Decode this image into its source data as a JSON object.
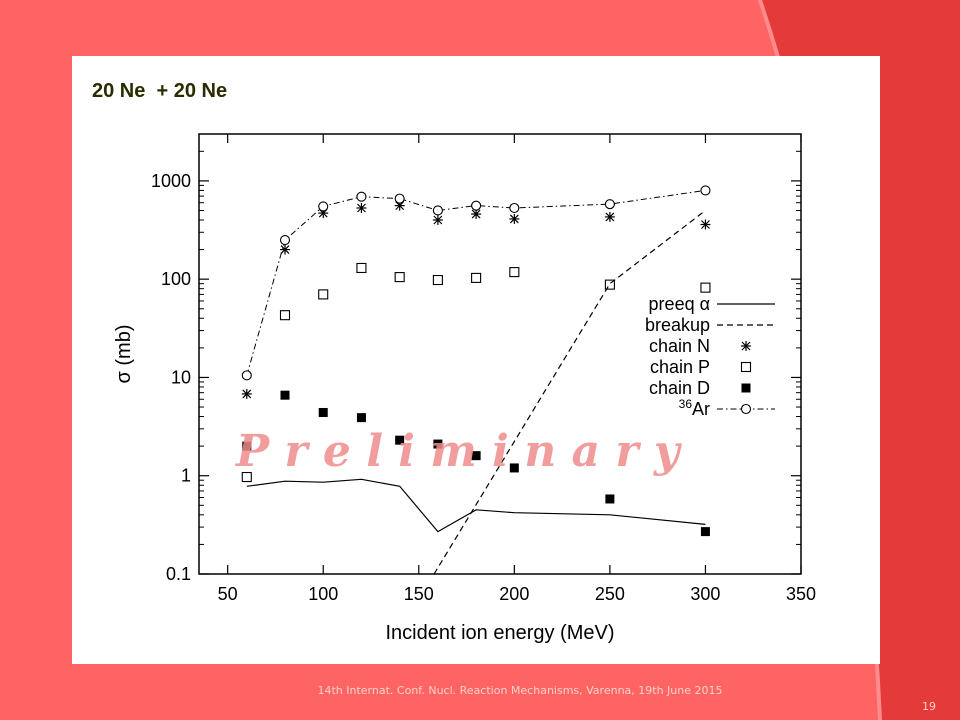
{
  "slide": {
    "title": "20 Ne  + 20 Ne",
    "footer": "14th Internat. Conf. Nucl. Reaction Mechanisms, Varenna, 19th June 2015",
    "page_number": "19",
    "watermark": "P r e l i m i n a r y"
  },
  "colors": {
    "background": "#ff6464",
    "accent_right": "#e53a3a",
    "watermark": "#f08c8c"
  },
  "chart_data": {
    "type": "scatter",
    "xlabel": "Incident ion energy (MeV)",
    "ylabel": "σ (mb)",
    "xlim": [
      35,
      350
    ],
    "ylim": [
      0.1,
      3000
    ],
    "yscale": "log",
    "x_ticks": [
      50,
      100,
      150,
      200,
      250,
      300,
      350
    ],
    "y_ticks": [
      {
        "value": 0.1,
        "label": "0.1"
      },
      {
        "value": 1,
        "label": "1"
      },
      {
        "value": 10,
        "label": "10"
      },
      {
        "value": 100,
        "label": "100"
      },
      {
        "value": 1000,
        "label": "1000"
      }
    ],
    "grid": false,
    "legend_position": "right",
    "series": [
      {
        "name": "preeq α",
        "style": "solid",
        "x": [
          60,
          80,
          100,
          120,
          140,
          160,
          180,
          200,
          250,
          300
        ],
        "y": [
          0.78,
          0.88,
          0.86,
          0.92,
          0.78,
          0.27,
          0.45,
          0.42,
          0.4,
          0.32
        ]
      },
      {
        "name": "breakup",
        "style": "dashed",
        "x": [
          158,
          250,
          300
        ],
        "y": [
          0.1,
          90,
          500
        ]
      },
      {
        "name": "chain N",
        "style": "star",
        "x": [
          60,
          80,
          100,
          120,
          140,
          160,
          180,
          200,
          250,
          300
        ],
        "y": [
          6.8,
          200,
          470,
          530,
          560,
          400,
          460,
          410,
          430,
          360
        ]
      },
      {
        "name": "chain P",
        "style": "open-square",
        "x": [
          60,
          80,
          100,
          120,
          140,
          160,
          180,
          200,
          250,
          300
        ],
        "y": [
          0.97,
          43,
          70,
          130,
          105,
          98,
          103,
          118,
          88,
          82
        ]
      },
      {
        "name": "chain D",
        "style": "filled-square",
        "x": [
          60,
          80,
          100,
          120,
          140,
          160,
          180,
          200,
          250,
          300
        ],
        "y": [
          2.0,
          6.6,
          4.4,
          3.9,
          2.3,
          2.1,
          1.6,
          1.2,
          0.58,
          0.27
        ]
      },
      {
        "name": "36Ar",
        "label_sup": "36",
        "label_main": "Ar",
        "style": "dashdot-circle",
        "x": [
          60,
          80,
          100,
          120,
          140,
          160,
          180,
          200,
          250,
          300
        ],
        "y": [
          10.5,
          250,
          550,
          690,
          660,
          500,
          560,
          530,
          580,
          800
        ]
      }
    ]
  }
}
